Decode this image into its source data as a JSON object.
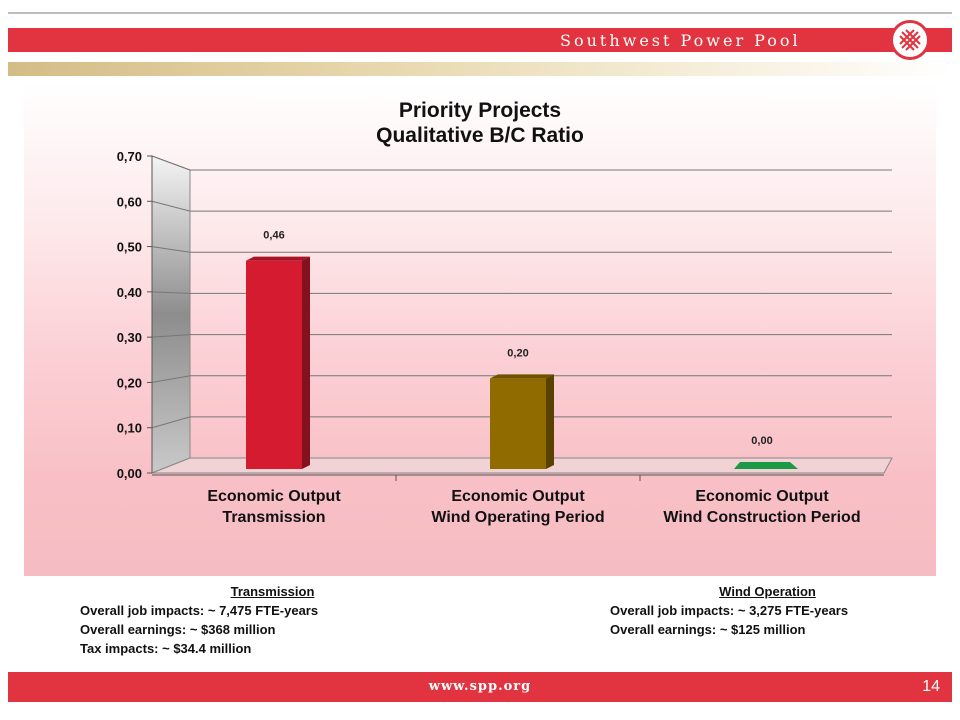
{
  "header": {
    "brand_name": "Southwest Power Pool"
  },
  "colors": {
    "brand_red": "#e23440",
    "bar_transmission": "#d41b30",
    "bar_wind_operating": "#8f6b00",
    "bar_wind_construction": "#1a9a45"
  },
  "chart_data": {
    "type": "bar",
    "title": "Priority Projects\nQualitative B/C Ratio",
    "xlabel": "",
    "ylabel": "",
    "categories": [
      "Economic Output\nTransmission",
      "Economic Output\nWind Operating Period",
      "Economic Output\nWind Construction Period"
    ],
    "values": [
      0.46,
      0.2,
      0.0
    ],
    "value_labels": [
      "0,46",
      "0,20",
      "0,00"
    ],
    "ylim": [
      0,
      0.7
    ],
    "yticks": [
      "0,00",
      "0,10",
      "0,20",
      "0,30",
      "0,40",
      "0,50",
      "0,60",
      "0,70"
    ],
    "bar_colors": [
      "#d41b30",
      "#8f6b00",
      "#1a9a45"
    ],
    "grid": true,
    "legend": "none"
  },
  "notes": {
    "left": {
      "heading": "Transmission",
      "lines": [
        "Overall job impacts: ~ 7,475 FTE-years",
        "Overall earnings: ~ $368 million",
        "Tax impacts: ~ $34.4 million"
      ]
    },
    "right": {
      "heading": "Wind Operation",
      "lines": [
        "Overall job impacts: ~ 3,275 FTE-years",
        "Overall earnings: ~ $125 million"
      ]
    }
  },
  "footer": {
    "url": "www.spp.org",
    "page_number": "14"
  }
}
